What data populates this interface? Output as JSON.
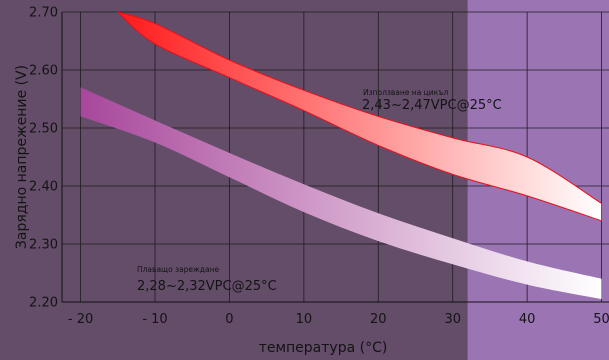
{
  "chart_data": {
    "type": "area",
    "xlabel": "температура (°C)",
    "ylabel": "Зарядно напрежение (V)",
    "xlim": [
      -22.5,
      51
    ],
    "ylim": [
      2.2,
      2.7
    ],
    "x_ticks": [
      "- 20",
      "- 10",
      "0",
      "10",
      "20",
      "30",
      "40",
      "50"
    ],
    "y_ticks": [
      "2.20",
      "2.30",
      "2.40",
      "2.50",
      "2.60",
      "2.70"
    ],
    "grid": true,
    "highlight_region": {
      "x_from": 32,
      "x_to": 51,
      "color": "#9b74b4"
    },
    "series": [
      {
        "name": "Използване на цикъл",
        "band_color_start": "#ff1a1a",
        "band_color_end": "#ffffff",
        "x": [
          -15,
          -10,
          0,
          10,
          20,
          30,
          40,
          50
        ],
        "upper": [
          2.7,
          2.68,
          2.617,
          2.565,
          2.52,
          2.483,
          2.45,
          2.37
        ],
        "lower": [
          2.7,
          2.645,
          2.587,
          2.53,
          2.47,
          2.42,
          2.383,
          2.34
        ]
      },
      {
        "name": "Плаващо зареждане",
        "band_color_start": "#a8479b",
        "band_color_end": "#ffffff",
        "x": [
          -20,
          -10,
          0,
          10,
          20,
          30,
          40,
          50
        ],
        "upper": [
          2.57,
          2.513,
          2.457,
          2.403,
          2.353,
          2.31,
          2.27,
          2.24
        ],
        "lower": [
          2.52,
          2.475,
          2.415,
          2.355,
          2.305,
          2.265,
          2.23,
          2.205
        ]
      }
    ],
    "annotations": [
      {
        "small": "Използване на цикъл",
        "big": "2,43~2,47VPC@25°C"
      },
      {
        "small": "Плаващо зареждане",
        "big": "2,28~2,32VPC@25°C"
      }
    ]
  }
}
